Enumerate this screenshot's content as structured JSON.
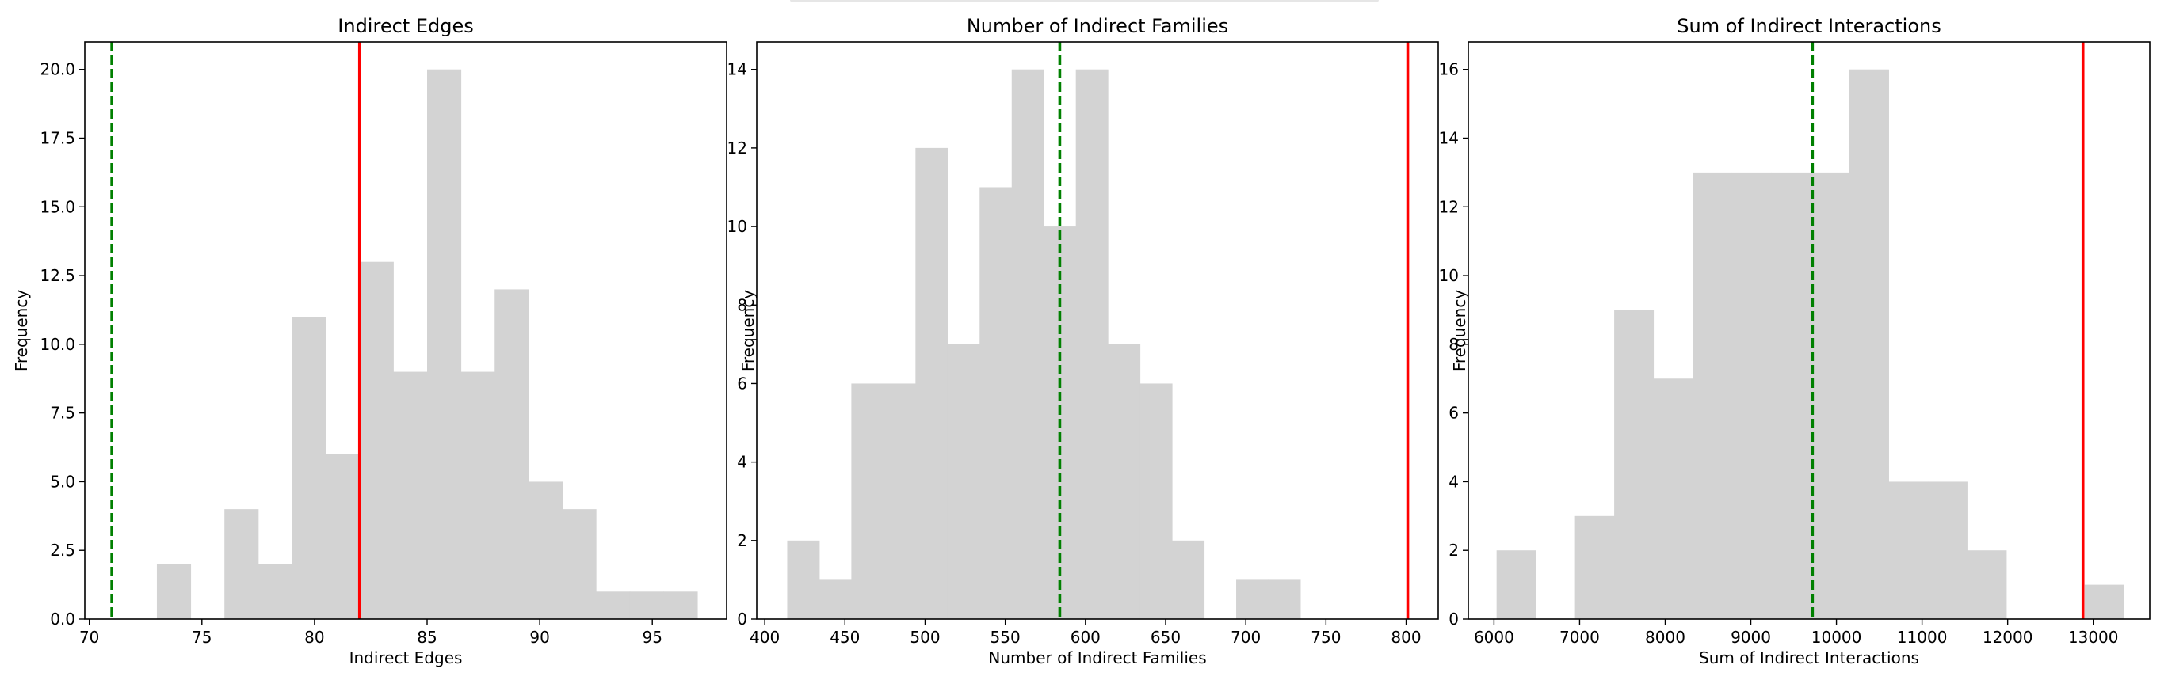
{
  "chart_data": [
    {
      "type": "bar",
      "title": "Indirect Edges",
      "xlabel": "Indirect Edges",
      "ylabel": "Frequency",
      "xlim": [
        69.8,
        98.3
      ],
      "ylim": [
        0,
        21
      ],
      "xticks": [
        70,
        75,
        80,
        85,
        90,
        95
      ],
      "xtick_labels": [
        "70",
        "75",
        "80",
        "85",
        "90",
        "95"
      ],
      "yticks": [
        0,
        2.5,
        5,
        7.5,
        10,
        12.5,
        15,
        17.5,
        20
      ],
      "ytick_labels": [
        "0.0",
        "2.5",
        "5.0",
        "7.5",
        "10.0",
        "12.5",
        "15.0",
        "17.5",
        "20.0"
      ],
      "bins": [
        {
          "x0": 73.0,
          "x1": 74.5,
          "value": 2
        },
        {
          "x0": 74.5,
          "x1": 76.0,
          "value": 0
        },
        {
          "x0": 76.0,
          "x1": 77.5,
          "value": 4
        },
        {
          "x0": 77.5,
          "x1": 79.0,
          "value": 2
        },
        {
          "x0": 79.0,
          "x1": 80.5,
          "value": 11
        },
        {
          "x0": 80.5,
          "x1": 82.0,
          "value": 6
        },
        {
          "x0": 82.0,
          "x1": 83.5,
          "value": 13
        },
        {
          "x0": 83.5,
          "x1": 85.0,
          "value": 9
        },
        {
          "x0": 85.0,
          "x1": 86.5,
          "value": 20
        },
        {
          "x0": 86.5,
          "x1": 88.0,
          "value": 9
        },
        {
          "x0": 88.0,
          "x1": 89.5,
          "value": 12
        },
        {
          "x0": 89.5,
          "x1": 91.0,
          "value": 5
        },
        {
          "x0": 91.0,
          "x1": 92.5,
          "value": 4
        },
        {
          "x0": 92.5,
          "x1": 94.0,
          "value": 1
        },
        {
          "x0": 94.0,
          "x1": 95.5,
          "value": 1
        },
        {
          "x0": 95.5,
          "x1": 97.0,
          "value": 1
        }
      ],
      "bar_color": "#d3d3d3",
      "lines": [
        {
          "x": 71,
          "color": "#008000",
          "style": "dashed"
        },
        {
          "x": 82,
          "color": "#ff0000",
          "style": "solid"
        }
      ],
      "grid": false
    },
    {
      "type": "bar",
      "title": "Number of Indirect Families",
      "xlabel": "Number of Indirect Families",
      "ylabel": "Frequency",
      "xlim": [
        395,
        820
      ],
      "ylim": [
        0,
        14.7
      ],
      "xticks": [
        400,
        450,
        500,
        550,
        600,
        650,
        700,
        750,
        800
      ],
      "xtick_labels": [
        "400",
        "450",
        "500",
        "550",
        "600",
        "650",
        "700",
        "750",
        "800"
      ],
      "yticks": [
        0,
        2,
        4,
        6,
        8,
        10,
        12,
        14
      ],
      "ytick_labels": [
        "0",
        "2",
        "4",
        "6",
        "8",
        "10",
        "12",
        "14"
      ],
      "bins": [
        {
          "x0": 414,
          "x1": 434,
          "value": 2
        },
        {
          "x0": 434,
          "x1": 454,
          "value": 1
        },
        {
          "x0": 454,
          "x1": 474,
          "value": 6
        },
        {
          "x0": 474,
          "x1": 494,
          "value": 6
        },
        {
          "x0": 494,
          "x1": 514,
          "value": 12
        },
        {
          "x0": 514,
          "x1": 534,
          "value": 7
        },
        {
          "x0": 534,
          "x1": 554,
          "value": 11
        },
        {
          "x0": 554,
          "x1": 574,
          "value": 14
        },
        {
          "x0": 574,
          "x1": 594,
          "value": 10
        },
        {
          "x0": 594,
          "x1": 614,
          "value": 14
        },
        {
          "x0": 614,
          "x1": 634,
          "value": 7
        },
        {
          "x0": 634,
          "x1": 654,
          "value": 6
        },
        {
          "x0": 654,
          "x1": 674,
          "value": 2
        },
        {
          "x0": 674,
          "x1": 694,
          "value": 0
        },
        {
          "x0": 694,
          "x1": 714,
          "value": 1
        },
        {
          "x0": 714,
          "x1": 734,
          "value": 1
        }
      ],
      "bar_color": "#d3d3d3",
      "lines": [
        {
          "x": 584,
          "color": "#008000",
          "style": "dashed"
        },
        {
          "x": 801,
          "color": "#ff0000",
          "style": "solid"
        }
      ],
      "grid": false
    },
    {
      "type": "bar",
      "title": "Sum of Indirect Interactions",
      "xlabel": "Sum of Indirect Interactions",
      "ylabel": "Frequency",
      "xlim": [
        5700,
        13660
      ],
      "ylim": [
        0,
        16.8
      ],
      "xticks": [
        6000,
        7000,
        8000,
        9000,
        10000,
        11000,
        12000,
        13000
      ],
      "xtick_labels": [
        "6000",
        "7000",
        "8000",
        "9000",
        "10000",
        "11000",
        "12000",
        "13000"
      ],
      "yticks": [
        0,
        2,
        4,
        6,
        8,
        10,
        12,
        14,
        16
      ],
      "ytick_labels": [
        "0",
        "2",
        "4",
        "6",
        "8",
        "10",
        "12",
        "14",
        "16"
      ],
      "bins": [
        {
          "x0": 6030,
          "x1": 6488,
          "value": 2
        },
        {
          "x0": 6488,
          "x1": 6946,
          "value": 0
        },
        {
          "x0": 6946,
          "x1": 7404,
          "value": 3
        },
        {
          "x0": 7404,
          "x1": 7862,
          "value": 9
        },
        {
          "x0": 7862,
          "x1": 8320,
          "value": 7
        },
        {
          "x0": 8320,
          "x1": 8778,
          "value": 13
        },
        {
          "x0": 8778,
          "x1": 9236,
          "value": 13
        },
        {
          "x0": 9236,
          "x1": 9694,
          "value": 13
        },
        {
          "x0": 9694,
          "x1": 10152,
          "value": 13
        },
        {
          "x0": 10152,
          "x1": 10610,
          "value": 16
        },
        {
          "x0": 10610,
          "x1": 11068,
          "value": 4
        },
        {
          "x0": 11068,
          "x1": 11526,
          "value": 4
        },
        {
          "x0": 11526,
          "x1": 11984,
          "value": 2
        },
        {
          "x0": 11984,
          "x1": 12442,
          "value": 0
        },
        {
          "x0": 12442,
          "x1": 12900,
          "value": 0
        },
        {
          "x0": 12900,
          "x1": 13358,
          "value": 1
        }
      ],
      "bar_color": "#d3d3d3",
      "lines": [
        {
          "x": 9720,
          "color": "#008000",
          "style": "dashed"
        },
        {
          "x": 12880,
          "color": "#ff0000",
          "style": "solid"
        }
      ],
      "grid": false
    }
  ]
}
